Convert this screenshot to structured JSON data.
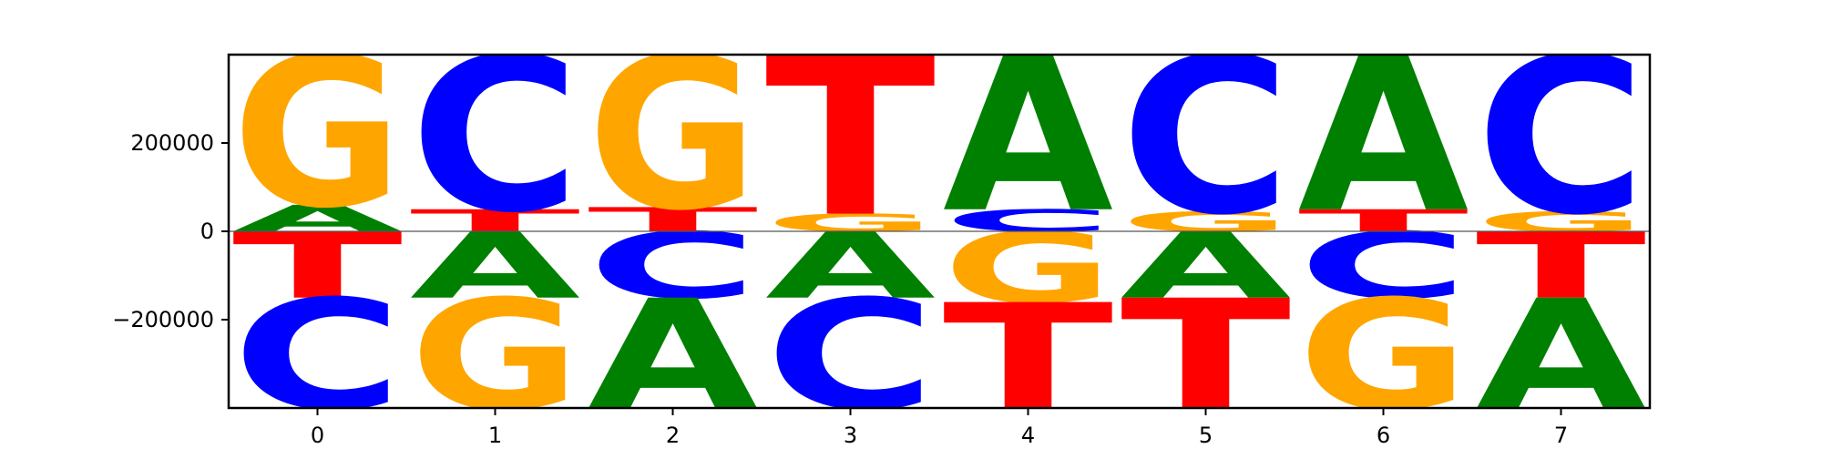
{
  "chart_data": {
    "type": "sequence-logo",
    "title": "",
    "xlabel": "",
    "ylabel": "",
    "positions": [
      0,
      1,
      2,
      3,
      4,
      5,
      6,
      7
    ],
    "ylim": [
      -400000,
      400000
    ],
    "yticks": [
      -200000,
      0,
      200000
    ],
    "ytick_labels": [
      "−200000",
      "0",
      "200000"
    ],
    "xtick_labels": [
      "0",
      "1",
      "2",
      "3",
      "4",
      "5",
      "6",
      "7"
    ],
    "colors": {
      "A": "#008000",
      "C": "#0000ff",
      "G": "#ffa500",
      "T": "#ff0000"
    },
    "columns": [
      {
        "position": 0,
        "letters": [
          {
            "base": "T",
            "bottom": -150000,
            "top": 0
          },
          {
            "base": "C",
            "bottom": -400000,
            "top": -150000
          },
          {
            "base": "A",
            "bottom": 0,
            "top": 60000
          },
          {
            "base": "G",
            "bottom": 60000,
            "top": 400000
          }
        ]
      },
      {
        "position": 1,
        "letters": [
          {
            "base": "A",
            "bottom": -150000,
            "top": 0
          },
          {
            "base": "G",
            "bottom": -400000,
            "top": -150000
          },
          {
            "base": "T",
            "bottom": 0,
            "top": 50000
          },
          {
            "base": "C",
            "bottom": 50000,
            "top": 400000
          }
        ]
      },
      {
        "position": 2,
        "letters": [
          {
            "base": "C",
            "bottom": -150000,
            "top": 0
          },
          {
            "base": "A",
            "bottom": -400000,
            "top": -150000
          },
          {
            "base": "T",
            "bottom": 0,
            "top": 55000
          },
          {
            "base": "G",
            "bottom": 55000,
            "top": 400000
          }
        ]
      },
      {
        "position": 3,
        "letters": [
          {
            "base": "A",
            "bottom": -150000,
            "top": 0
          },
          {
            "base": "C",
            "bottom": -400000,
            "top": -150000
          },
          {
            "base": "G",
            "bottom": 0,
            "top": 40000
          },
          {
            "base": "T",
            "bottom": 40000,
            "top": 400000
          }
        ]
      },
      {
        "position": 4,
        "letters": [
          {
            "base": "G",
            "bottom": -160000,
            "top": 0
          },
          {
            "base": "T",
            "bottom": -400000,
            "top": -160000
          },
          {
            "base": "C",
            "bottom": 0,
            "top": 50000
          },
          {
            "base": "A",
            "bottom": 50000,
            "top": 400000
          }
        ]
      },
      {
        "position": 5,
        "letters": [
          {
            "base": "A",
            "bottom": -150000,
            "top": 0
          },
          {
            "base": "T",
            "bottom": -400000,
            "top": -150000
          },
          {
            "base": "G",
            "bottom": 0,
            "top": 45000
          },
          {
            "base": "C",
            "bottom": 45000,
            "top": 400000
          }
        ]
      },
      {
        "position": 6,
        "letters": [
          {
            "base": "C",
            "bottom": -150000,
            "top": 0
          },
          {
            "base": "G",
            "bottom": -400000,
            "top": -150000
          },
          {
            "base": "T",
            "bottom": 0,
            "top": 50000
          },
          {
            "base": "A",
            "bottom": 50000,
            "top": 400000
          }
        ]
      },
      {
        "position": 7,
        "letters": [
          {
            "base": "T",
            "bottom": -150000,
            "top": 0
          },
          {
            "base": "A",
            "bottom": -400000,
            "top": -150000
          },
          {
            "base": "G",
            "bottom": 0,
            "top": 45000
          },
          {
            "base": "C",
            "bottom": 45000,
            "top": 400000
          }
        ]
      }
    ]
  }
}
